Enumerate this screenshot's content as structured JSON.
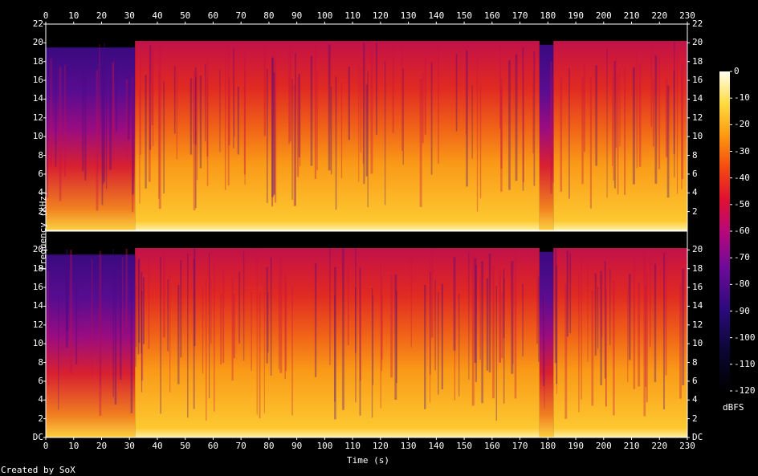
{
  "chart_data": {
    "type": "heatmap",
    "title": "",
    "xlabel": "Time (s)",
    "ylabel": "Frequency (kHz)",
    "xlim": [
      0,
      230
    ],
    "x_ticks": [
      0,
      10,
      20,
      30,
      40,
      50,
      60,
      70,
      80,
      90,
      100,
      110,
      120,
      130,
      140,
      150,
      160,
      170,
      180,
      190,
      200,
      210,
      220,
      230
    ],
    "channels": [
      {
        "name": "",
        "ylim": [
          0,
          22
        ],
        "y_ticks": [
          "2",
          "4",
          "6",
          "8",
          "10",
          "12",
          "14",
          "16",
          "18",
          "20",
          "22"
        ]
      },
      {
        "name": "",
        "ylim": [
          0,
          22
        ],
        "y_ticks": [
          "DC",
          "2",
          "4",
          "6",
          "8",
          "10",
          "12",
          "14",
          "16",
          "18",
          "20"
        ]
      }
    ],
    "colorbar": {
      "label": "dBFS",
      "range": [
        -120,
        0
      ],
      "ticks": [
        "0",
        "-10",
        "-20",
        "-30",
        "-40",
        "-50",
        "-60",
        "-70",
        "-80",
        "-90",
        "-100",
        "-110",
        "-120"
      ]
    },
    "segments": [
      {
        "t_start": 0,
        "t_end": 32,
        "cutoff_khz": 19.5,
        "level": "low"
      },
      {
        "t_start": 32,
        "t_end": 177,
        "cutoff_khz": 20.2,
        "level": "high"
      },
      {
        "t_start": 177,
        "t_end": 182,
        "cutoff_khz": 19.8,
        "level": "low"
      },
      {
        "t_start": 182,
        "t_end": 230,
        "cutoff_khz": 20.2,
        "level": "high"
      }
    ],
    "credit": "Created by SoX"
  }
}
